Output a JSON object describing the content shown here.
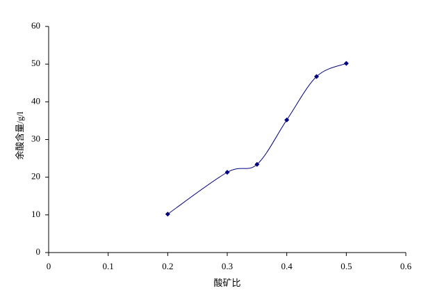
{
  "chart_data": {
    "type": "line",
    "x_label": "酸矿比",
    "y_label": "余酸含量/g/l",
    "x": [
      0.2,
      0.3,
      0.35,
      0.4,
      0.45,
      0.5
    ],
    "series": [
      {
        "color": "#000080",
        "values": [
          10.2,
          21.3,
          23.4,
          35.2,
          46.7,
          50.2
        ]
      }
    ],
    "xlim": [
      0,
      0.6
    ],
    "xticks": [
      0,
      0.1,
      0.2,
      0.3,
      0.4,
      0.5,
      0.6
    ],
    "ylim": [
      0,
      60
    ],
    "yticks": [
      0,
      10,
      20,
      30,
      40,
      50,
      60
    ],
    "smooth": true,
    "grid": false
  }
}
